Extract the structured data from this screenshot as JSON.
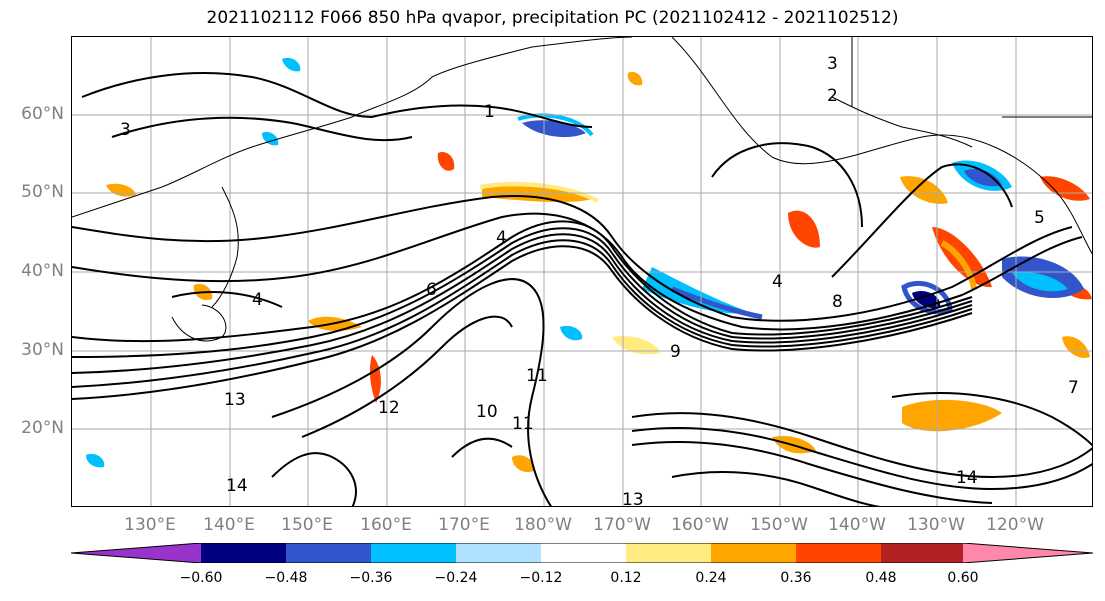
{
  "title": "2021102112 F066 850 hPa qvapor, precipitation PC (2021102412 - 2021102512)",
  "lat_labels": [
    "60°N",
    "50°N",
    "40°N",
    "30°N",
    "20°N"
  ],
  "lon_labels": [
    "130°E",
    "140°E",
    "150°E",
    "160°E",
    "170°E",
    "180°W",
    "170°W",
    "160°W",
    "150°W",
    "140°W",
    "130°W",
    "120°W"
  ],
  "colorbar": {
    "ticks": [
      "−0.60",
      "−0.48",
      "−0.36",
      "−0.24",
      "−0.12",
      "0.12",
      "0.24",
      "0.36",
      "0.48",
      "0.60"
    ],
    "colors": [
      "#9933cc",
      "#000080",
      "#3355cc",
      "#00bfff",
      "#b0e2ff",
      "#ffffff",
      "#ffeb80",
      "#ffa500",
      "#ff4500",
      "#b22222",
      "#ff88aa"
    ]
  },
  "contour_labels": [
    "1",
    "2",
    "3",
    "3",
    "4",
    "4",
    "4",
    "5",
    "6",
    "7",
    "8",
    "9",
    "10",
    "11",
    "11",
    "12",
    "13",
    "13",
    "14",
    "14"
  ],
  "colors": {
    "contour": "#000000",
    "land_outline": "#000000",
    "grid": "#aaaaaa",
    "label_grey": "#808080"
  }
}
